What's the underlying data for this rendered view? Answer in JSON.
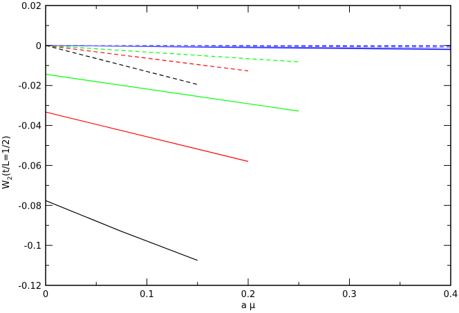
{
  "chart_data": {
    "type": "line",
    "title": "",
    "xlabel": "a μ",
    "ylabel_main": "W",
    "ylabel_sub": "2",
    "ylabel_rest": "(t/L=1/2)",
    "xlim": [
      0,
      0.4
    ],
    "ylim": [
      -0.12,
      0.02
    ],
    "xticks": [
      "0",
      "0.1",
      "0.2",
      "0.3",
      "0.4"
    ],
    "xtick_values": [
      0,
      0.1,
      0.2,
      0.3,
      0.4
    ],
    "yticks": [
      "0.02",
      "0",
      "-0.02",
      "-0.04",
      "-0.06",
      "-0.08",
      "-0.1",
      "-0.12"
    ],
    "ytick_values": [
      0.02,
      0,
      -0.02,
      -0.04,
      -0.06,
      -0.08,
      -0.1,
      -0.12
    ],
    "grid": false,
    "series": [
      {
        "color": "#000000",
        "dash": false,
        "x": [
          0,
          0.075,
          0.15
        ],
        "y": [
          -0.0776,
          -0.093,
          -0.1075
        ]
      },
      {
        "color": "#ff0000",
        "dash": false,
        "x": [
          0,
          0.2
        ],
        "y": [
          -0.0333,
          -0.058
        ]
      },
      {
        "color": "#00ff00",
        "dash": false,
        "x": [
          0,
          0.25
        ],
        "y": [
          -0.0144,
          -0.0328
        ]
      },
      {
        "color": "#0000ff",
        "dash": false,
        "x": [
          0,
          0.4
        ],
        "y": [
          0,
          -0.002
        ]
      },
      {
        "color": "#8080ff",
        "dash": false,
        "x": [
          0,
          0.4
        ],
        "y": [
          0,
          -0.0014
        ]
      },
      {
        "color": "#000000",
        "dash": true,
        "x": [
          0,
          0.15
        ],
        "y": [
          0,
          -0.0195
        ]
      },
      {
        "color": "#ff0000",
        "dash": true,
        "x": [
          0,
          0.2
        ],
        "y": [
          0,
          -0.0127
        ]
      },
      {
        "color": "#00ff00",
        "dash": true,
        "x": [
          0,
          0.25
        ],
        "y": [
          0,
          -0.0082
        ]
      },
      {
        "color": "#0000ff",
        "dash": true,
        "x": [
          0,
          0.4
        ],
        "y": [
          0,
          -0.0002
        ]
      },
      {
        "color": "#8080ff",
        "dash": true,
        "x": [
          0,
          0.4
        ],
        "y": [
          0,
          -0.0008
        ]
      }
    ]
  }
}
